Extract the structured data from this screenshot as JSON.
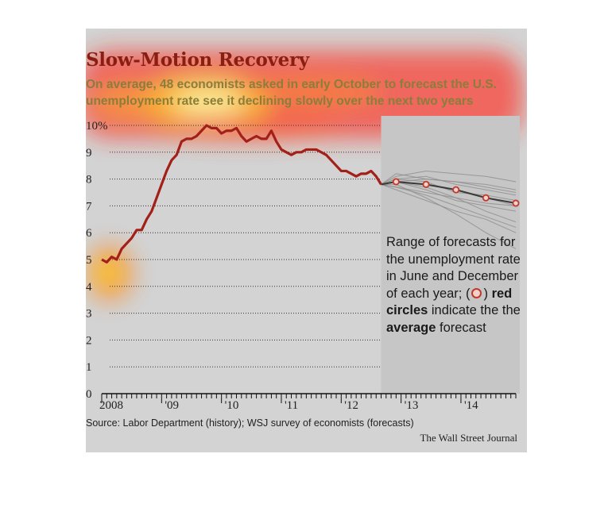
{
  "title": "Slow-Motion Recovery",
  "subtitle": "On average, 48 economists asked in early October to forecast the U.S. unemployment rate see it declining slowly over the next two years",
  "legend": {
    "line1": "Range of forecasts for the unemployment rate in June and December of each year;",
    "bold1": "red circles",
    "line2": "indicate the the",
    "bold2": "average",
    "line3": "forecast"
  },
  "source": "Source: Labor Department (history); WSJ survey of economists (forecasts)",
  "credit": "The Wall Street Journal",
  "colors": {
    "history": "#a3201a",
    "forecast_range": "#8c8c8c",
    "average_circle": "#c0392b",
    "background": "#d3d3d3"
  },
  "chart_data": {
    "type": "line",
    "title": "Slow-Motion Recovery",
    "xlabel": "",
    "ylabel": "",
    "ylim": [
      0,
      10
    ],
    "y_ticks": [
      "10%",
      "9",
      "8",
      "7",
      "6",
      "5",
      "4",
      "3",
      "2",
      "1",
      "0"
    ],
    "x_ticks": [
      "2008",
      "'09",
      "'10",
      "'11",
      "'12",
      "'13",
      "'14"
    ],
    "grid": true,
    "series": [
      {
        "x": [
          "2008-01",
          "2008-02",
          "2008-03",
          "2008-04",
          "2008-05",
          "2008-06",
          "2008-07",
          "2008-08",
          "2008-09",
          "2008-10",
          "2008-11",
          "2008-12",
          "2009-01",
          "2009-02",
          "2009-03",
          "2009-04",
          "2009-05",
          "2009-06",
          "2009-07",
          "2009-08",
          "2009-09",
          "2009-10",
          "2009-11",
          "2009-12",
          "2010-01",
          "2010-02",
          "2010-03",
          "2010-04",
          "2010-05",
          "2010-06",
          "2010-07",
          "2010-08",
          "2010-09",
          "2010-10",
          "2010-11",
          "2010-12",
          "2011-01",
          "2011-02",
          "2011-03",
          "2011-04",
          "2011-05",
          "2011-06",
          "2011-07",
          "2011-08",
          "2011-09",
          "2011-10",
          "2011-11",
          "2011-12",
          "2012-01",
          "2012-02",
          "2012-03",
          "2012-04",
          "2012-05",
          "2012-06",
          "2012-07",
          "2012-08",
          "2012-09"
        ],
        "values": [
          5.0,
          4.9,
          5.1,
          5.0,
          5.4,
          5.6,
          5.8,
          6.1,
          6.1,
          6.5,
          6.8,
          7.3,
          7.8,
          8.3,
          8.7,
          8.9,
          9.4,
          9.5,
          9.5,
          9.6,
          9.8,
          10.0,
          9.9,
          9.9,
          9.7,
          9.8,
          9.8,
          9.9,
          9.6,
          9.4,
          9.5,
          9.6,
          9.5,
          9.5,
          9.8,
          9.4,
          9.1,
          9.0,
          8.9,
          9.0,
          9.0,
          9.1,
          9.1,
          9.1,
          9.0,
          8.9,
          8.7,
          8.5,
          8.3,
          8.3,
          8.2,
          8.1,
          8.2,
          8.2,
          8.3,
          8.1,
          7.8
        ]
      }
    ],
    "forecast_average": {
      "x": [
        "2012-12",
        "2013-06",
        "2013-12",
        "2014-06",
        "2014-12"
      ],
      "values": [
        7.9,
        7.8,
        7.6,
        7.3,
        7.1
      ]
    },
    "forecast_range": [
      [
        7.8,
        7.9,
        8.0,
        7.9,
        7.8,
        7.6
      ],
      [
        7.8,
        8.1,
        8.3,
        8.2,
        8.1,
        7.9
      ],
      [
        7.8,
        7.7,
        7.4,
        7.0,
        6.6,
        6.2
      ],
      [
        7.8,
        7.9,
        7.7,
        7.3,
        6.8,
        6.4
      ],
      [
        7.8,
        7.8,
        7.3,
        6.7,
        6.0,
        5.4
      ],
      [
        7.8,
        8.0,
        7.9,
        7.5,
        7.4,
        7.2
      ],
      [
        7.8,
        7.7,
        7.5,
        7.3,
        7.1,
        7.0
      ],
      [
        7.8,
        8.0,
        8.1,
        7.8,
        7.6,
        7.4
      ],
      [
        7.8,
        7.9,
        7.6,
        7.2,
        7.0,
        6.8
      ],
      [
        7.8,
        7.6,
        7.2,
        6.8,
        6.5,
        6.0
      ],
      [
        7.8,
        7.9,
        7.8,
        7.6,
        7.3,
        7.0
      ],
      [
        7.8,
        8.2,
        8.0,
        7.9,
        7.7,
        7.5
      ]
    ],
    "forecast_range_x": [
      "2012-09",
      "2012-12",
      "2013-06",
      "2013-12",
      "2014-06",
      "2014-12"
    ]
  }
}
